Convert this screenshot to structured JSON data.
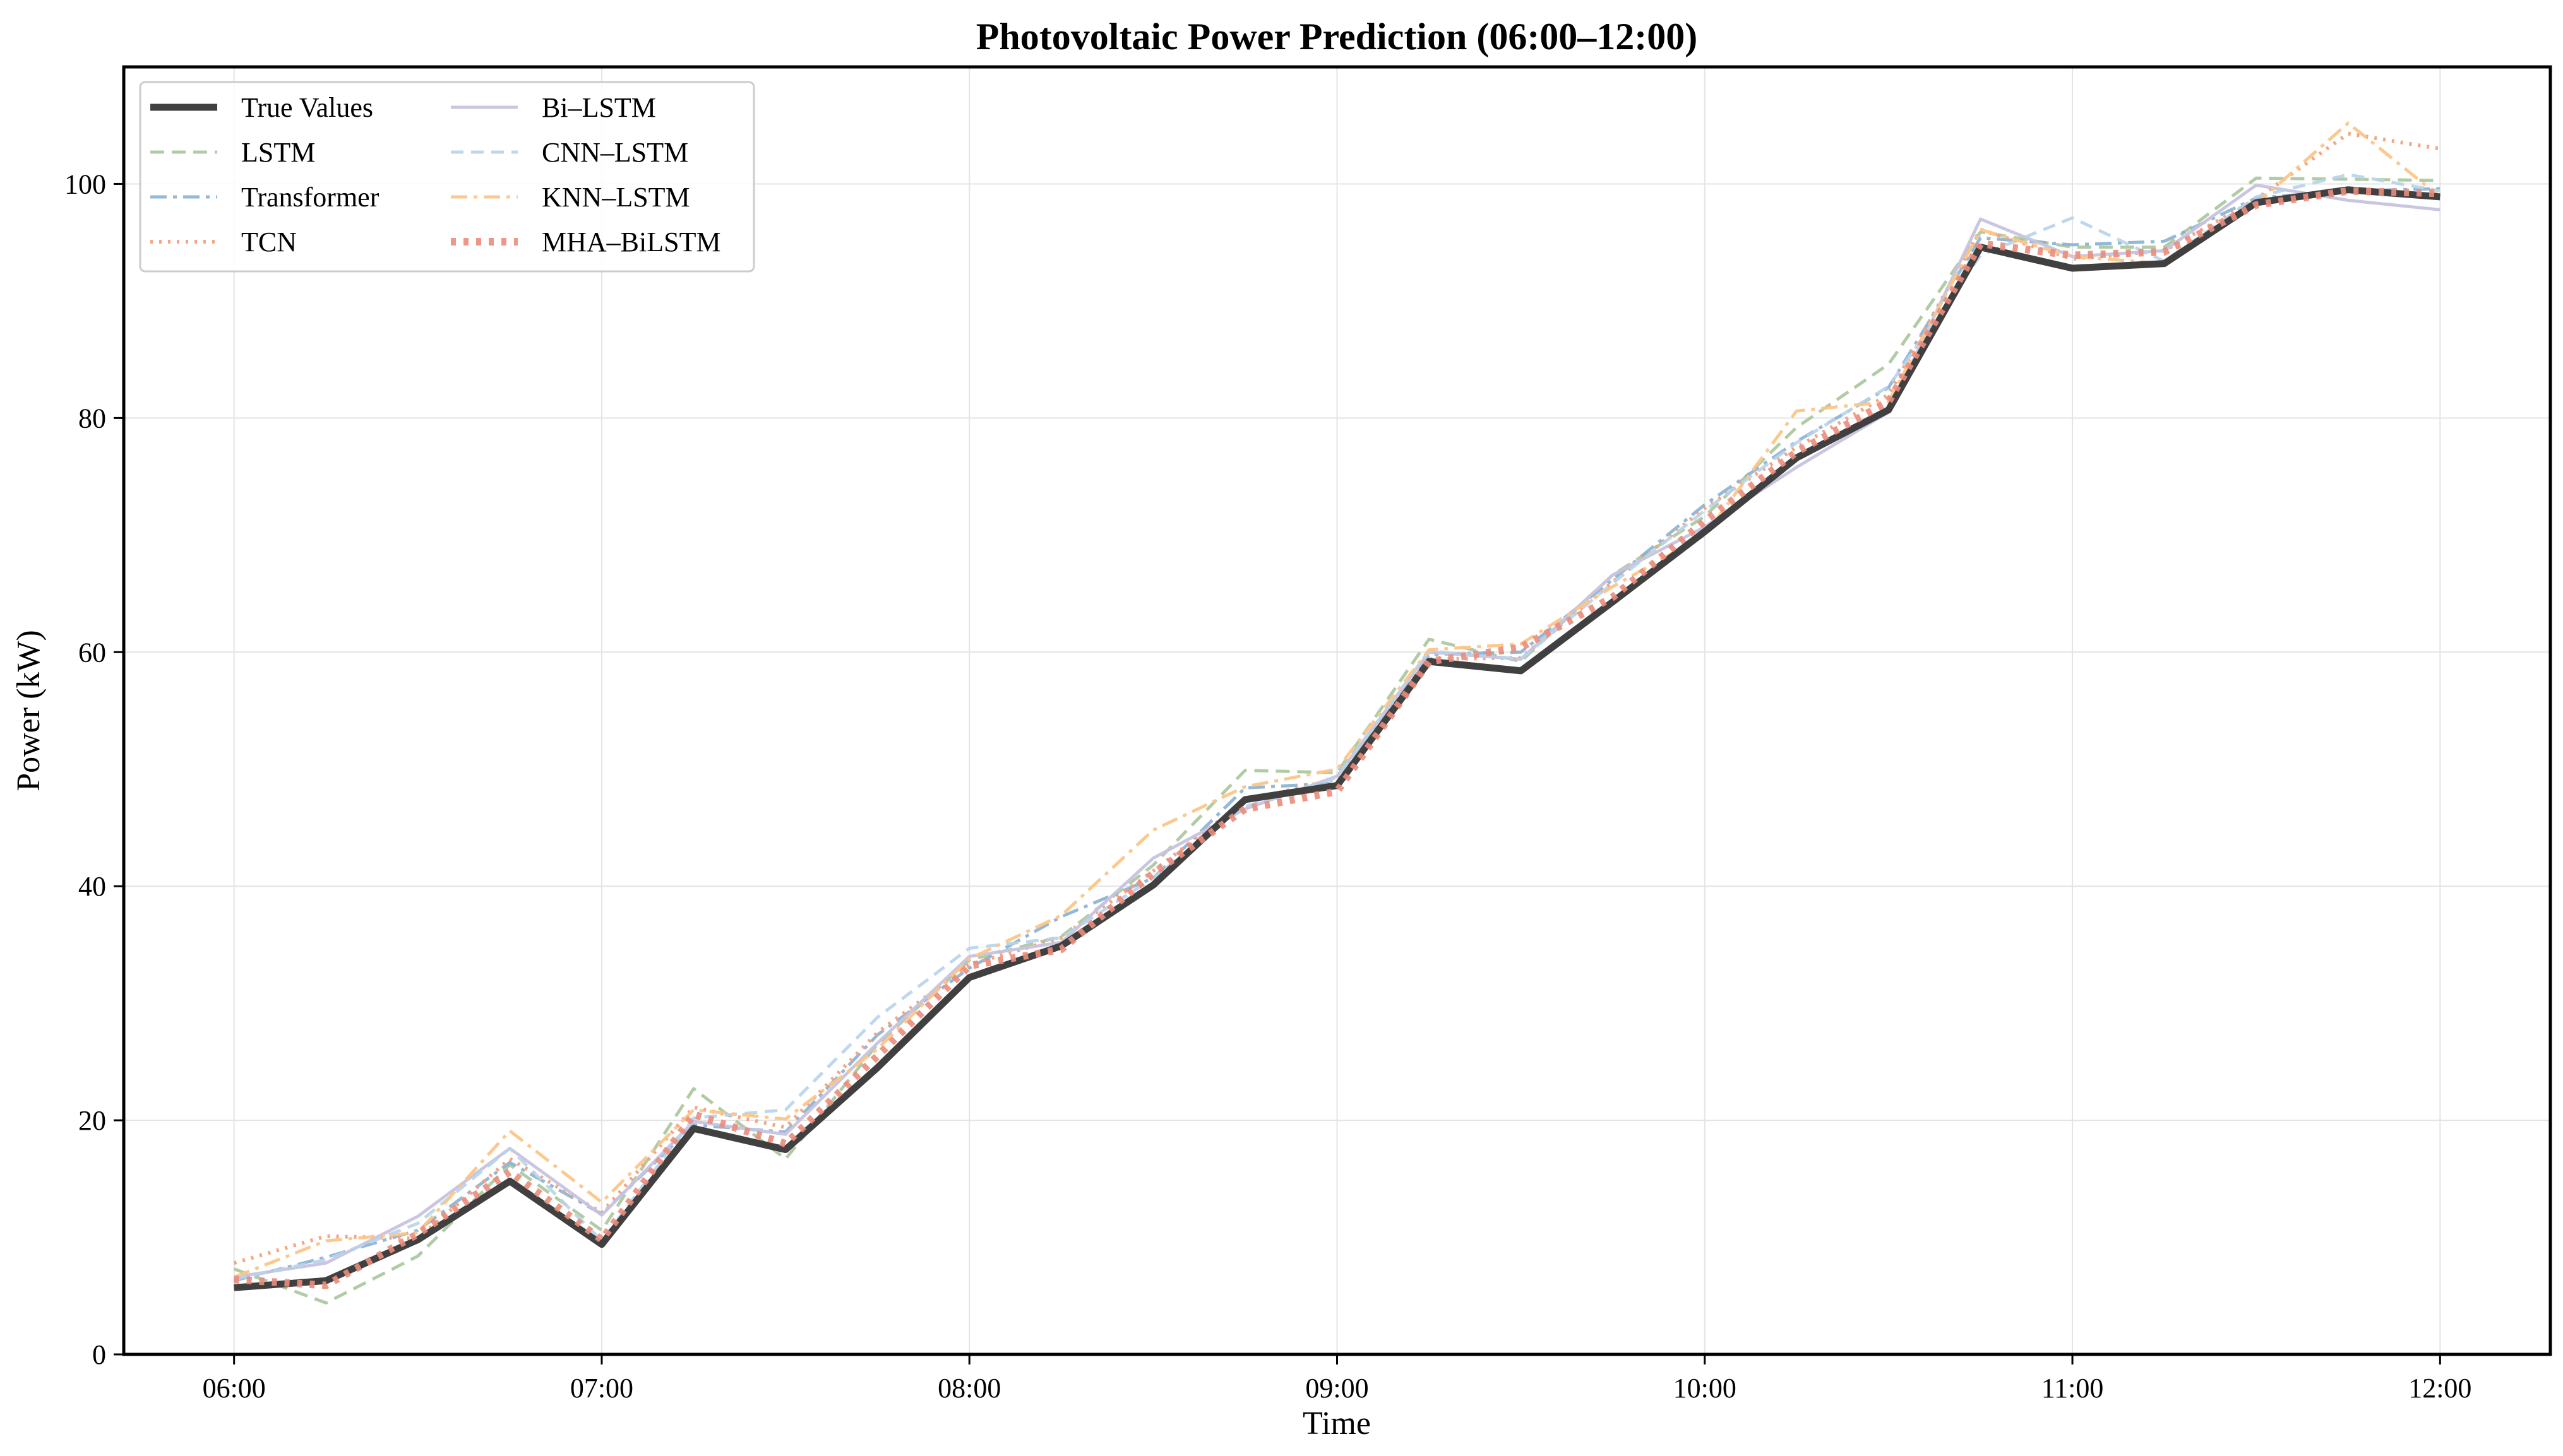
{
  "chart_data": {
    "type": "line",
    "title": "Photovoltaic Power Prediction (06:00–12:00)",
    "xlabel": "Time",
    "ylabel": "Power (kW)",
    "x_ticks": [
      "06:00",
      "07:00",
      "08:00",
      "09:00",
      "10:00",
      "11:00",
      "12:00"
    ],
    "y_ticks": [
      0,
      20,
      40,
      60,
      80,
      100
    ],
    "xlim": [
      "05:42",
      "12:18"
    ],
    "ylim": [
      0,
      110
    ],
    "grid": true,
    "legend_position": "top-left",
    "x": [
      "06:00",
      "06:15",
      "06:30",
      "06:45",
      "07:00",
      "07:15",
      "07:30",
      "07:45",
      "08:00",
      "08:15",
      "08:30",
      "08:45",
      "09:00",
      "09:15",
      "09:30",
      "09:45",
      "10:00",
      "10:15",
      "10:30",
      "10:45",
      "11:00",
      "11:15",
      "11:30",
      "11:45",
      "12:00"
    ],
    "series": [
      {
        "name": "True Values",
        "color": "#404040",
        "values": [
          5.7,
          6.3,
          9.8,
          14.8,
          9.4,
          19.3,
          17.5,
          24.5,
          32.2,
          34.9,
          40.1,
          47.4,
          48.6,
          59.2,
          58.4,
          64.3,
          70.3,
          76.6,
          80.7,
          94.6,
          92.8,
          93.2,
          98.4,
          99.5,
          98.9
        ]
      },
      {
        "name": "LSTM",
        "color": "#a9c79b",
        "values": [
          7.3,
          4.4,
          8.4,
          16.2,
          10.6,
          22.7,
          16.7,
          26.5,
          33.7,
          35.7,
          41.8,
          49.9,
          49.7,
          61.1,
          59.2,
          66.6,
          71.6,
          79.2,
          84.6,
          95.9,
          94.6,
          94.6,
          100.5,
          100.4,
          100.3
        ]
      },
      {
        "name": "Transformer",
        "color": "#86b1d4",
        "values": [
          6.3,
          8.3,
          10.6,
          16.4,
          12.0,
          19.6,
          19.0,
          27.3,
          33.0,
          37.4,
          40.7,
          48.4,
          48.8,
          59.8,
          60.0,
          66.2,
          72.6,
          78.0,
          82.6,
          95.4,
          94.8,
          95.1,
          98.8,
          99.4,
          99.6
        ]
      },
      {
        "name": "TCN",
        "color": "#f4a07c",
        "values": [
          7.8,
          10.1,
          9.9,
          16.7,
          12.1,
          21.1,
          19.4,
          27.5,
          33.3,
          35.6,
          41.3,
          47.3,
          49.2,
          59.4,
          59.5,
          66.0,
          72.3,
          77.5,
          82.0,
          96.1,
          93.6,
          94.3,
          98.7,
          104.3,
          103.0
        ]
      },
      {
        "name": "Bi–LSTM",
        "color": "#c7c3df",
        "values": [
          6.6,
          7.8,
          11.8,
          17.6,
          11.9,
          19.9,
          18.8,
          26.6,
          34.0,
          35.2,
          42.4,
          46.6,
          49.4,
          60.0,
          59.4,
          66.6,
          70.7,
          75.8,
          80.5,
          97.0,
          93.8,
          94.3,
          99.9,
          98.6,
          97.8
        ]
      },
      {
        "name": "CNN–LSTM",
        "color": "#b8d3ea",
        "values": [
          6.4,
          8.1,
          11.2,
          17.6,
          9.7,
          20.2,
          20.9,
          28.8,
          34.7,
          35.6,
          40.7,
          46.8,
          49.3,
          60.1,
          59.4,
          65.9,
          72.1,
          77.9,
          82.7,
          93.9,
          97.1,
          93.4,
          98.9,
          100.8,
          99.4
        ]
      },
      {
        "name": "KNN–LSTM",
        "color": "#fcc588",
        "values": [
          6.6,
          9.7,
          10.4,
          19.1,
          13.0,
          20.9,
          20.1,
          26.1,
          33.8,
          37.5,
          44.8,
          48.5,
          50.0,
          60.2,
          60.7,
          65.6,
          70.0,
          80.6,
          81.4,
          96.1,
          93.8,
          93.2,
          98.3,
          105.2,
          98.9
        ]
      },
      {
        "name": "MHA–BiLSTM",
        "color": "#eb8c7c",
        "values": [
          6.4,
          5.9,
          10.3,
          15.6,
          9.8,
          20.5,
          18.0,
          25.5,
          33.2,
          34.6,
          41.1,
          46.6,
          48.1,
          59.2,
          60.4,
          64.7,
          71.2,
          77.1,
          81.4,
          94.9,
          93.9,
          94.2,
          98.2,
          99.4,
          99.2
        ]
      }
    ]
  }
}
